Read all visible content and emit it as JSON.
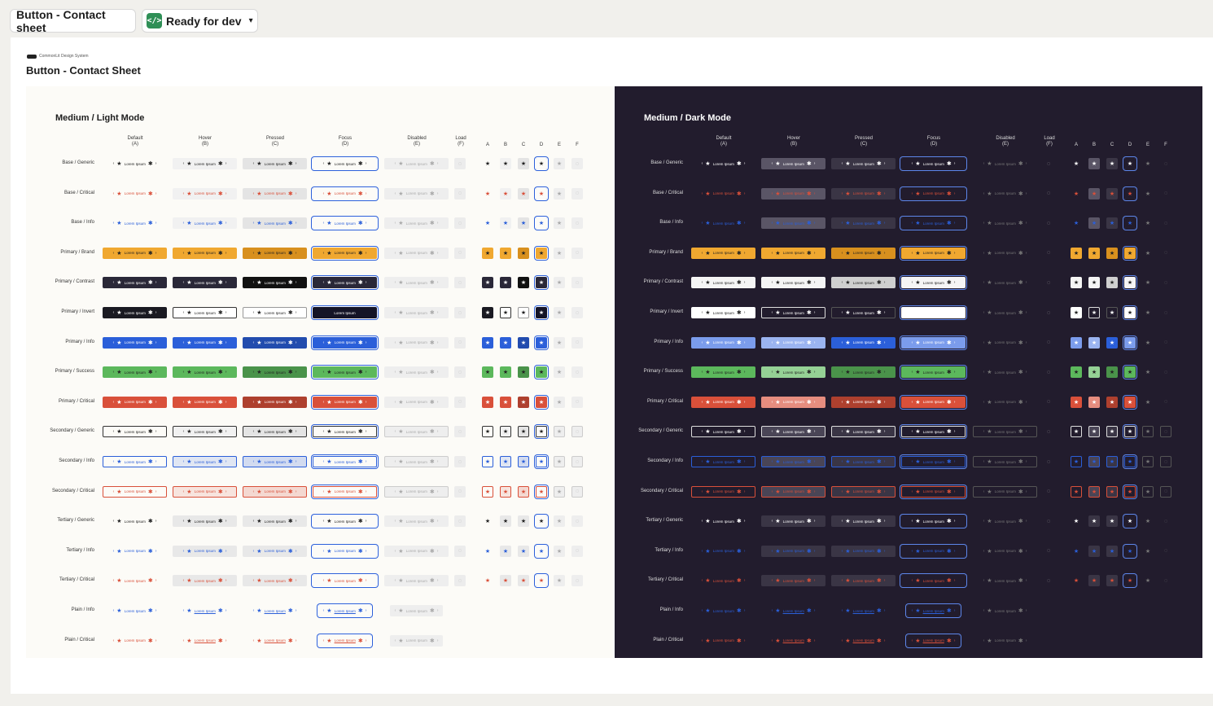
{
  "topbar": {
    "title": "Button - Contact sheet",
    "status": "Ready for dev",
    "status_icon": "code-icon"
  },
  "canvas": {
    "brand": "CommonLit Design System",
    "title": "Button - Contact Sheet"
  },
  "button_label": "Lorem Ipsum",
  "columns": [
    {
      "name": "Default",
      "code": "(A)"
    },
    {
      "name": "Hover",
      "code": "(B)"
    },
    {
      "name": "Pressed",
      "code": "(C)"
    },
    {
      "name": "Focus",
      "code": "(D)"
    },
    {
      "name": "Disabled",
      "code": "(E)"
    },
    {
      "name": "Load",
      "code": "(F)"
    }
  ],
  "icon_columns": [
    "A",
    "B",
    "C",
    "D",
    "E",
    "F"
  ],
  "rows": [
    "Base / Generic",
    "Base / Critical",
    "Base / Info",
    "Primary / Brand",
    "Primary / Contrast",
    "Primary / Invert",
    "Primary / Info",
    "Primary / Success",
    "Primary / Critical",
    "Secondary / Generic",
    "Secondary / Info",
    "Secondary / Critical",
    "Tertiary / Generic",
    "Tertiary / Info",
    "Tertiary / Critical",
    "Plain / Info",
    "Plain / Critical"
  ],
  "panels": {
    "light": {
      "title": "Medium / Light Mode"
    },
    "dark": {
      "title": "Medium / Dark Mode"
    }
  },
  "colors": {
    "brand": "#f0a830",
    "info": "#2b5fd9",
    "success": "#5cb85c",
    "critical": "#d9503a",
    "contrast": "#2a2838",
    "dark_bg": "#221c2d",
    "light_bg": "#fcfbf7"
  }
}
